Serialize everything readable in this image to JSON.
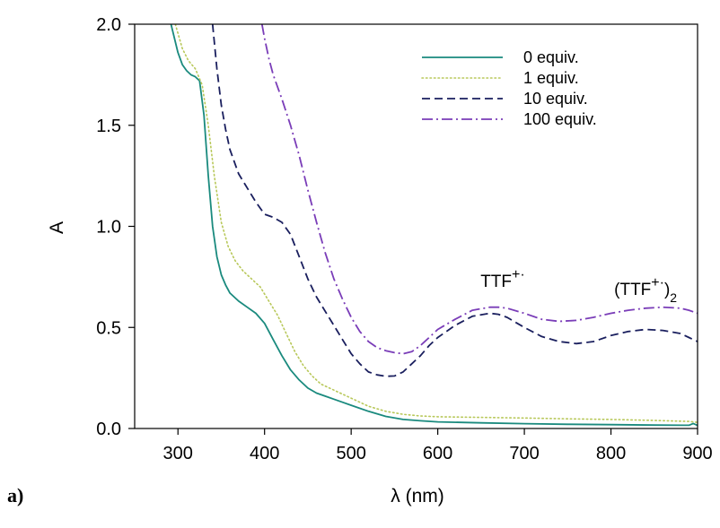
{
  "chart_data": {
    "type": "line",
    "title": "",
    "xlabel": "λ (nm)",
    "ylabel": "A",
    "xlim": [
      250,
      900
    ],
    "ylim": [
      0,
      2.0
    ],
    "x_ticks": [
      "300",
      "400",
      "500",
      "600",
      "700",
      "800",
      "900"
    ],
    "y_ticks": [
      "0.0",
      "0.5",
      "1.0",
      "1.5",
      "2.0"
    ],
    "grid": false,
    "legend_position": "top-right",
    "panel_label": "a)",
    "annotations": [
      {
        "text": "TTF",
        "sup": "+·",
        "sub": "",
        "x": 675,
        "y": 0.7
      },
      {
        "text": "(TTF",
        "sup": "+·",
        "close": ")",
        "sub": "2",
        "x": 840,
        "y": 0.66
      }
    ],
    "series": [
      {
        "name": "0 equiv.",
        "color": "#1a8a7e",
        "style": "solid",
        "x": [
          292,
          300,
          305,
          310,
          315,
          320,
          325,
          330,
          335,
          340,
          345,
          350,
          355,
          360,
          370,
          380,
          390,
          400,
          410,
          420,
          430,
          440,
          450,
          460,
          470,
          480,
          490,
          500,
          520,
          540,
          560,
          580,
          600,
          650,
          700,
          750,
          800,
          850,
          890,
          895,
          900
        ],
        "y": [
          2.0,
          1.86,
          1.8,
          1.77,
          1.75,
          1.74,
          1.72,
          1.55,
          1.25,
          1.0,
          0.85,
          0.76,
          0.71,
          0.67,
          0.63,
          0.6,
          0.57,
          0.52,
          0.44,
          0.36,
          0.29,
          0.24,
          0.2,
          0.175,
          0.16,
          0.145,
          0.13,
          0.115,
          0.085,
          0.06,
          0.045,
          0.038,
          0.033,
          0.028,
          0.024,
          0.021,
          0.019,
          0.017,
          0.016,
          0.025,
          0.015
        ]
      },
      {
        "name": "1 equiv.",
        "color": "#b8c85a",
        "style": "dotted",
        "x": [
          297,
          305,
          312,
          320,
          328,
          335,
          342,
          350,
          358,
          366,
          375,
          385,
          395,
          405,
          415,
          425,
          435,
          445,
          455,
          465,
          475,
          485,
          500,
          520,
          540,
          560,
          580,
          600,
          650,
          700,
          750,
          800,
          850,
          890,
          900
        ],
        "y": [
          2.0,
          1.88,
          1.82,
          1.78,
          1.7,
          1.5,
          1.25,
          1.02,
          0.9,
          0.83,
          0.78,
          0.74,
          0.7,
          0.63,
          0.56,
          0.47,
          0.38,
          0.31,
          0.26,
          0.22,
          0.2,
          0.18,
          0.15,
          0.11,
          0.085,
          0.07,
          0.062,
          0.058,
          0.055,
          0.052,
          0.048,
          0.045,
          0.04,
          0.035,
          0.03
        ]
      },
      {
        "name": "10 equiv.",
        "color": "#1a1f5e",
        "style": "dashed",
        "x": [
          340,
          345,
          350,
          355,
          360,
          370,
          380,
          390,
          400,
          410,
          420,
          430,
          440,
          450,
          460,
          470,
          480,
          490,
          500,
          510,
          520,
          530,
          540,
          550,
          560,
          570,
          580,
          590,
          600,
          620,
          640,
          660,
          670,
          680,
          700,
          720,
          740,
          760,
          780,
          800,
          820,
          840,
          860,
          880,
          890,
          900
        ],
        "y": [
          2.0,
          1.78,
          1.6,
          1.48,
          1.38,
          1.26,
          1.19,
          1.12,
          1.06,
          1.045,
          1.02,
          0.96,
          0.85,
          0.74,
          0.65,
          0.58,
          0.51,
          0.44,
          0.37,
          0.32,
          0.28,
          0.265,
          0.258,
          0.26,
          0.28,
          0.32,
          0.36,
          0.41,
          0.45,
          0.51,
          0.555,
          0.57,
          0.565,
          0.55,
          0.5,
          0.455,
          0.43,
          0.42,
          0.43,
          0.46,
          0.48,
          0.49,
          0.485,
          0.47,
          0.45,
          0.43
        ]
      },
      {
        "name": "100 equiv.",
        "color": "#7a3db8",
        "style": "dashdot",
        "x": [
          397,
          400,
          405,
          410,
          420,
          430,
          440,
          450,
          460,
          470,
          480,
          490,
          500,
          510,
          520,
          530,
          540,
          550,
          560,
          570,
          580,
          590,
          600,
          620,
          640,
          660,
          670,
          680,
          700,
          720,
          740,
          760,
          780,
          800,
          820,
          840,
          860,
          880,
          890,
          900
        ],
        "y": [
          2.0,
          1.93,
          1.83,
          1.75,
          1.63,
          1.5,
          1.35,
          1.18,
          1.02,
          0.87,
          0.74,
          0.64,
          0.55,
          0.48,
          0.43,
          0.4,
          0.385,
          0.375,
          0.37,
          0.38,
          0.41,
          0.45,
          0.49,
          0.54,
          0.585,
          0.6,
          0.6,
          0.595,
          0.57,
          0.54,
          0.53,
          0.535,
          0.55,
          0.57,
          0.585,
          0.595,
          0.6,
          0.595,
          0.585,
          0.57
        ]
      }
    ]
  }
}
